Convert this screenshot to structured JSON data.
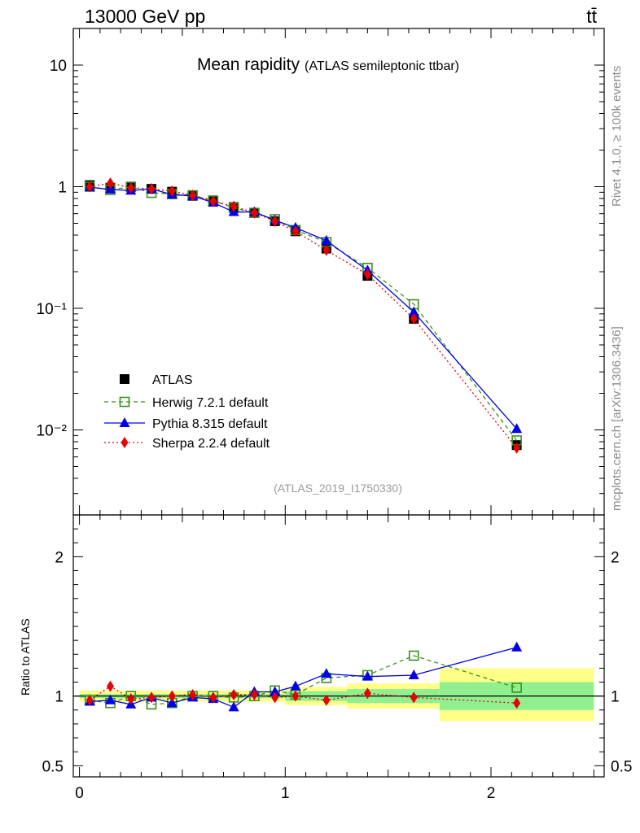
{
  "header": {
    "left": "13000 GeV pp",
    "right": "tt̄"
  },
  "side_labels": {
    "rivet": "Rivet 4.1.0, ≥ 100k events",
    "mcplots": "mcplots.cern.ch [arXiv:1306.3436]"
  },
  "chart_data": [
    {
      "type": "line",
      "panel": "main",
      "title": "Mean rapidity",
      "subtitle": "(ATLAS semileptonic ttbar)",
      "watermark": "(ATLAS_2019_I1750330)",
      "xlabel": "",
      "ylabel": "",
      "yscale": "log",
      "xlim": [
        -0.03,
        2.55
      ],
      "ylim": [
        0.002,
        20
      ],
      "y_ticks": [
        {
          "value": 10,
          "label": "10"
        },
        {
          "value": 1,
          "label": "1"
        },
        {
          "value": 0.1,
          "label": "10⁻¹"
        },
        {
          "value": 0.01,
          "label": "10⁻²"
        }
      ],
      "legend_position": "bottom-left",
      "x": [
        0.05,
        0.15,
        0.25,
        0.35,
        0.45,
        0.55,
        0.65,
        0.75,
        0.85,
        0.95,
        1.05,
        1.2,
        1.4,
        1.625,
        2.125
      ],
      "series": [
        {
          "name": "ATLAS",
          "color": "#000000",
          "marker": "square-filled",
          "line": "none",
          "values": [
            1.03,
            0.98,
            0.99,
            0.96,
            0.91,
            0.84,
            0.76,
            0.68,
            0.61,
            0.52,
            0.43,
            0.31,
            0.185,
            0.082,
            0.0075
          ]
        },
        {
          "name": "Herwig 7.2.1 default",
          "color": "#3a8f1f",
          "marker": "square-open",
          "line": "dashed",
          "values": [
            1.0,
            0.94,
            1.0,
            0.89,
            0.87,
            0.85,
            0.77,
            0.67,
            0.61,
            0.54,
            0.44,
            0.35,
            0.215,
            0.108,
            0.0082
          ]
        },
        {
          "name": "Pythia 8.315 default",
          "color": "#0000e6",
          "marker": "triangle",
          "line": "solid",
          "values": [
            0.99,
            0.95,
            0.93,
            0.96,
            0.86,
            0.84,
            0.74,
            0.62,
            0.62,
            0.53,
            0.46,
            0.36,
            0.205,
            0.093,
            0.0102
          ]
        },
        {
          "name": "Sherpa 2.2.4 default",
          "color": "#e60000",
          "marker": "diamond",
          "line": "dotted",
          "values": [
            1.0,
            1.07,
            0.98,
            0.96,
            0.92,
            0.85,
            0.76,
            0.69,
            0.61,
            0.52,
            0.43,
            0.3,
            0.19,
            0.082,
            0.0071
          ]
        }
      ]
    },
    {
      "type": "line",
      "panel": "ratio",
      "ylabel": "Ratio to ATLAS",
      "xlabel": "",
      "ylim": [
        0.42,
        2.3
      ],
      "xlim": [
        -0.03,
        2.55
      ],
      "y_ticks": [
        {
          "value": 2,
          "label": "2"
        },
        {
          "value": 1,
          "label": "1"
        },
        {
          "value": 0.5,
          "label": "0.5"
        }
      ],
      "x_ticks": [
        {
          "value": 0,
          "label": "0"
        },
        {
          "value": 1,
          "label": "1"
        },
        {
          "value": 2,
          "label": "2"
        }
      ],
      "reference_line": 1,
      "uncertainty_bands": [
        {
          "x0": 0.0,
          "x1": 1.0,
          "inner": [
            0.985,
            1.015
          ],
          "outer": [
            0.96,
            1.04
          ]
        },
        {
          "x0": 1.0,
          "x1": 1.3,
          "inner": [
            0.965,
            1.035
          ],
          "outer": [
            0.935,
            1.065
          ]
        },
        {
          "x0": 1.3,
          "x1": 1.75,
          "inner": [
            0.95,
            1.05
          ],
          "outer": [
            0.91,
            1.09
          ]
        },
        {
          "x0": 1.75,
          "x1": 2.5,
          "inner": [
            0.9,
            1.1
          ],
          "outer": [
            0.82,
            1.2
          ]
        }
      ],
      "x": [
        0.05,
        0.15,
        0.25,
        0.35,
        0.45,
        0.55,
        0.65,
        0.75,
        0.85,
        0.95,
        1.05,
        1.2,
        1.4,
        1.625,
        2.125
      ],
      "series": [
        {
          "name": "Herwig 7.2.1 default",
          "color": "#3a8f1f",
          "marker": "square-open",
          "line": "dashed",
          "values": [
            0.97,
            0.95,
            1.0,
            0.94,
            0.95,
            1.0,
            1.0,
            0.99,
            1.0,
            1.04,
            1.01,
            1.13,
            1.15,
            1.29,
            1.06
          ]
        },
        {
          "name": "Pythia 8.315 default",
          "color": "#0000e6",
          "marker": "triangle",
          "line": "solid",
          "values": [
            0.96,
            0.97,
            0.94,
            0.99,
            0.95,
            0.99,
            0.98,
            0.92,
            1.03,
            1.03,
            1.07,
            1.16,
            1.14,
            1.15,
            1.35
          ]
        },
        {
          "name": "Sherpa 2.2.4 default",
          "color": "#e60000",
          "marker": "diamond",
          "line": "dotted",
          "values": [
            0.97,
            1.07,
            0.98,
            0.99,
            1.0,
            1.01,
            0.99,
            1.01,
            1.01,
            0.99,
            1.0,
            0.97,
            1.02,
            0.99,
            0.95
          ]
        }
      ]
    }
  ]
}
